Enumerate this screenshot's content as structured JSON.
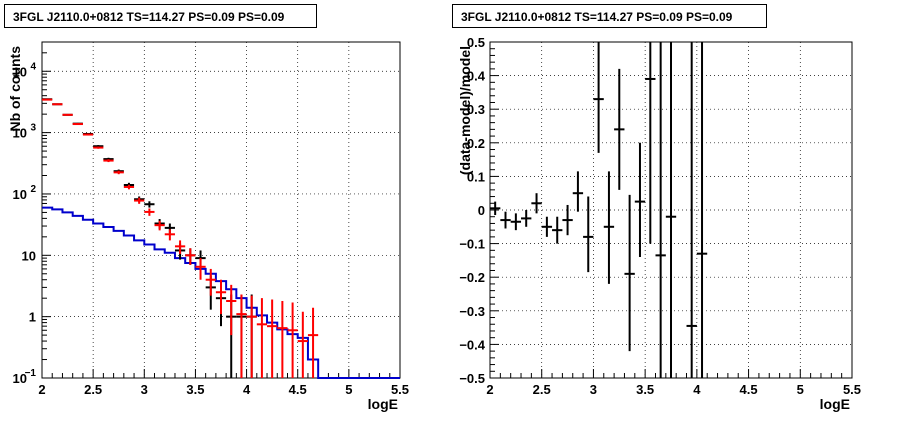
{
  "chart_data": [
    {
      "type": "histogram",
      "title": "3FGL J2110.0+0812 TS=114.27 PS=0.09 PS=0.09",
      "xlabel": "logE",
      "ylabel": "Nb of counts",
      "xlim": [
        2,
        5.5
      ],
      "ylim": [
        0.1,
        30000
      ],
      "yscale": "log",
      "grid": true,
      "x_ticks": [
        "2",
        "2.5",
        "3",
        "3.5",
        "4",
        "4.5",
        "5",
        "5.5"
      ],
      "y_ticks": [
        {
          "value": 0.1,
          "label": "10",
          "exp": "−1"
        },
        {
          "value": 1,
          "label": "1",
          "exp": ""
        },
        {
          "value": 10,
          "label": "10",
          "exp": ""
        },
        {
          "value": 100,
          "label": "10",
          "exp": "2"
        },
        {
          "value": 1000,
          "label": "10",
          "exp": "3"
        },
        {
          "value": 10000,
          "label": "10",
          "exp": "4"
        }
      ],
      "series": [
        {
          "color": "#000000",
          "style": "errorbar",
          "x": [
            2.05,
            2.15,
            2.25,
            2.35,
            2.45,
            2.55,
            2.65,
            2.75,
            2.85,
            2.95,
            3.05,
            3.15,
            3.25,
            3.35,
            3.45,
            3.55,
            3.65,
            3.75,
            3.85,
            3.95,
            4.05
          ],
          "y": [
            3500,
            2900,
            1950,
            1400,
            950,
            600,
            370,
            235,
            140,
            82,
            68,
            33,
            28,
            12,
            10,
            9,
            3,
            2,
            1,
            1,
            1
          ],
          "lo": [
            3440,
            2840,
            1905,
            1362,
            919,
            575,
            351,
            220,
            128,
            73,
            60,
            27,
            23,
            8.5,
            7,
            6,
            1.3,
            0.7,
            0.05,
            0.05,
            0.05
          ],
          "hi": [
            3560,
            2960,
            1995,
            1438,
            981,
            625,
            389,
            250,
            152,
            91,
            76,
            39,
            33,
            15.5,
            13,
            12,
            4.7,
            3.3,
            2.3,
            2.3,
            2.3
          ]
        },
        {
          "color": "#ff0000",
          "style": "errorbar",
          "x": [
            2.05,
            2.15,
            2.25,
            2.35,
            2.45,
            2.55,
            2.65,
            2.75,
            2.85,
            2.95,
            3.05,
            3.15,
            3.25,
            3.35,
            3.45,
            3.55,
            3.65,
            3.75,
            3.85,
            3.95,
            4.05,
            4.15,
            4.25,
            4.35,
            4.45,
            4.55,
            4.65
          ],
          "y": [
            3450,
            2900,
            1950,
            1380,
            930,
            570,
            350,
            225,
            130,
            78,
            51,
            31,
            22,
            14,
            10,
            6.5,
            4,
            2.5,
            1.8,
            1.1,
            1,
            0.75,
            0.7,
            0.65,
            0.6,
            0.4,
            0.5
          ],
          "lo": [
            3390,
            2840,
            1905,
            1342,
            899,
            546,
            331,
            210,
            119,
            69,
            44,
            25.5,
            17.5,
            10.5,
            7,
            4,
            2.2,
            1.1,
            0.5,
            0.06,
            0.05,
            0.05,
            0.05,
            0.05,
            0.05,
            0.05,
            0.05
          ],
          "hi": [
            3510,
            2960,
            1995,
            1418,
            961,
            594,
            369,
            240,
            141,
            87,
            58,
            36.5,
            26.5,
            17.5,
            13,
            9,
            6,
            4,
            3.3,
            2.3,
            2.2,
            2,
            1.9,
            1.8,
            1.7,
            1.2,
            1.4
          ]
        },
        {
          "color": "#0000cc",
          "style": "step",
          "x_edges": [
            2.0,
            2.1,
            2.2,
            2.3,
            2.4,
            2.5,
            2.6,
            2.7,
            2.8,
            2.9,
            3.0,
            3.1,
            3.2,
            3.3,
            3.4,
            3.5,
            3.6,
            3.7,
            3.8,
            3.9,
            4.0,
            4.1,
            4.2,
            4.3,
            4.4,
            4.5,
            4.6,
            4.7,
            4.8,
            4.9,
            5.0,
            5.1,
            5.2,
            5.3,
            5.4,
            5.5
          ],
          "values": [
            60,
            56,
            50,
            44,
            38,
            33,
            29,
            25,
            21,
            17.5,
            15,
            12.5,
            11,
            9,
            7.5,
            6,
            5,
            3.8,
            2.8,
            2,
            1.4,
            1.05,
            0.8,
            0.62,
            0.52,
            0.45,
            0.2,
            0.1,
            0.1,
            0.1,
            0.1,
            0.1,
            0.1,
            0.1,
            0.1
          ]
        }
      ]
    },
    {
      "type": "errorbar",
      "title": "3FGL J2110.0+0812 TS=114.27 PS=0.09 PS=0.09",
      "xlabel": "logE",
      "ylabel": "(data-model)/model",
      "xlim": [
        2,
        5.5
      ],
      "ylim": [
        -0.5,
        0.5
      ],
      "grid": true,
      "x_ticks": [
        "2",
        "2.5",
        "3",
        "3.5",
        "4",
        "4.5",
        "5",
        "5.5"
      ],
      "y_ticks": [
        "−0.5",
        "−0.4",
        "−0.3",
        "−0.2",
        "−0.1",
        "0",
        "0.1",
        "0.2",
        "0.3",
        "0.4",
        "0.5"
      ],
      "series": [
        {
          "color": "#000000",
          "x": [
            2.05,
            2.15,
            2.25,
            2.35,
            2.45,
            2.55,
            2.65,
            2.75,
            2.85,
            2.95,
            3.05,
            3.15,
            3.25,
            3.35,
            3.45,
            3.55,
            3.65,
            3.75,
            3.95,
            4.05
          ],
          "y": [
            0.005,
            -0.03,
            -0.035,
            -0.025,
            0.02,
            -0.05,
            -0.06,
            -0.03,
            0.05,
            -0.08,
            0.33,
            -0.05,
            0.24,
            -0.19,
            0.025,
            0.39,
            -0.135,
            -0.02,
            -0.345,
            -0.13
          ],
          "lo": [
            -0.015,
            -0.055,
            -0.06,
            -0.05,
            -0.01,
            -0.08,
            -0.1,
            -0.075,
            -0.005,
            -0.185,
            0.17,
            -0.22,
            0.06,
            -0.42,
            -0.14,
            -0.1,
            -0.5,
            -0.5,
            -0.5,
            -0.5
          ],
          "hi": [
            0.025,
            -0.005,
            -0.01,
            0.0,
            0.05,
            -0.02,
            -0.02,
            0.015,
            0.115,
            0.04,
            0.5,
            0.115,
            0.42,
            0.045,
            0.2,
            0.5,
            0.5,
            0.5,
            0.5,
            0.5
          ]
        }
      ]
    }
  ]
}
